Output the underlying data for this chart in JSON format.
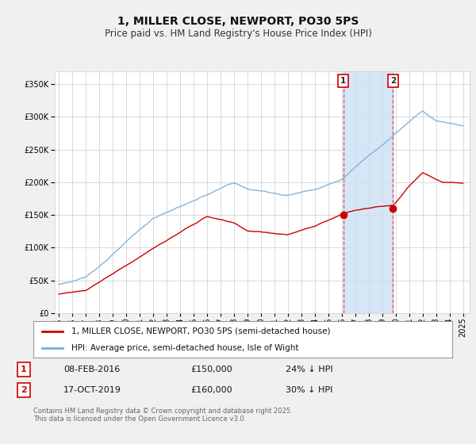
{
  "title": "1, MILLER CLOSE, NEWPORT, PO30 5PS",
  "subtitle": "Price paid vs. HM Land Registry's House Price Index (HPI)",
  "ylabel_ticks": [
    "£0",
    "£50K",
    "£100K",
    "£150K",
    "£200K",
    "£250K",
    "£300K",
    "£350K"
  ],
  "ytick_values": [
    0,
    50000,
    100000,
    150000,
    200000,
    250000,
    300000,
    350000
  ],
  "ylim": [
    0,
    370000
  ],
  "xlim_start": 1994.7,
  "xlim_end": 2025.5,
  "marker1_date": 2016.1,
  "marker2_date": 2019.8,
  "sale1_price_val": 150000,
  "sale2_price_val": 160000,
  "sale1_date": "08-FEB-2016",
  "sale1_price": "£150,000",
  "sale1_note": "24% ↓ HPI",
  "sale2_date": "17-OCT-2019",
  "sale2_price": "£160,000",
  "sale2_note": "30% ↓ HPI",
  "legend1": "1, MILLER CLOSE, NEWPORT, PO30 5PS (semi-detached house)",
  "legend2": "HPI: Average price, semi-detached house, Isle of Wight",
  "footer": "Contains HM Land Registry data © Crown copyright and database right 2025.\nThis data is licensed under the Open Government Licence v3.0.",
  "line_red": "#cc0000",
  "line_blue": "#7aadd4",
  "bg_color": "#f0f0f0",
  "plot_bg": "#ffffff",
  "shade_color": "#cce0f5",
  "grid_color": "#cccccc",
  "title_fontsize": 10,
  "subtitle_fontsize": 8.5,
  "tick_fontsize": 7,
  "legend_fontsize": 7.5,
  "table_fontsize": 8,
  "footer_fontsize": 6
}
